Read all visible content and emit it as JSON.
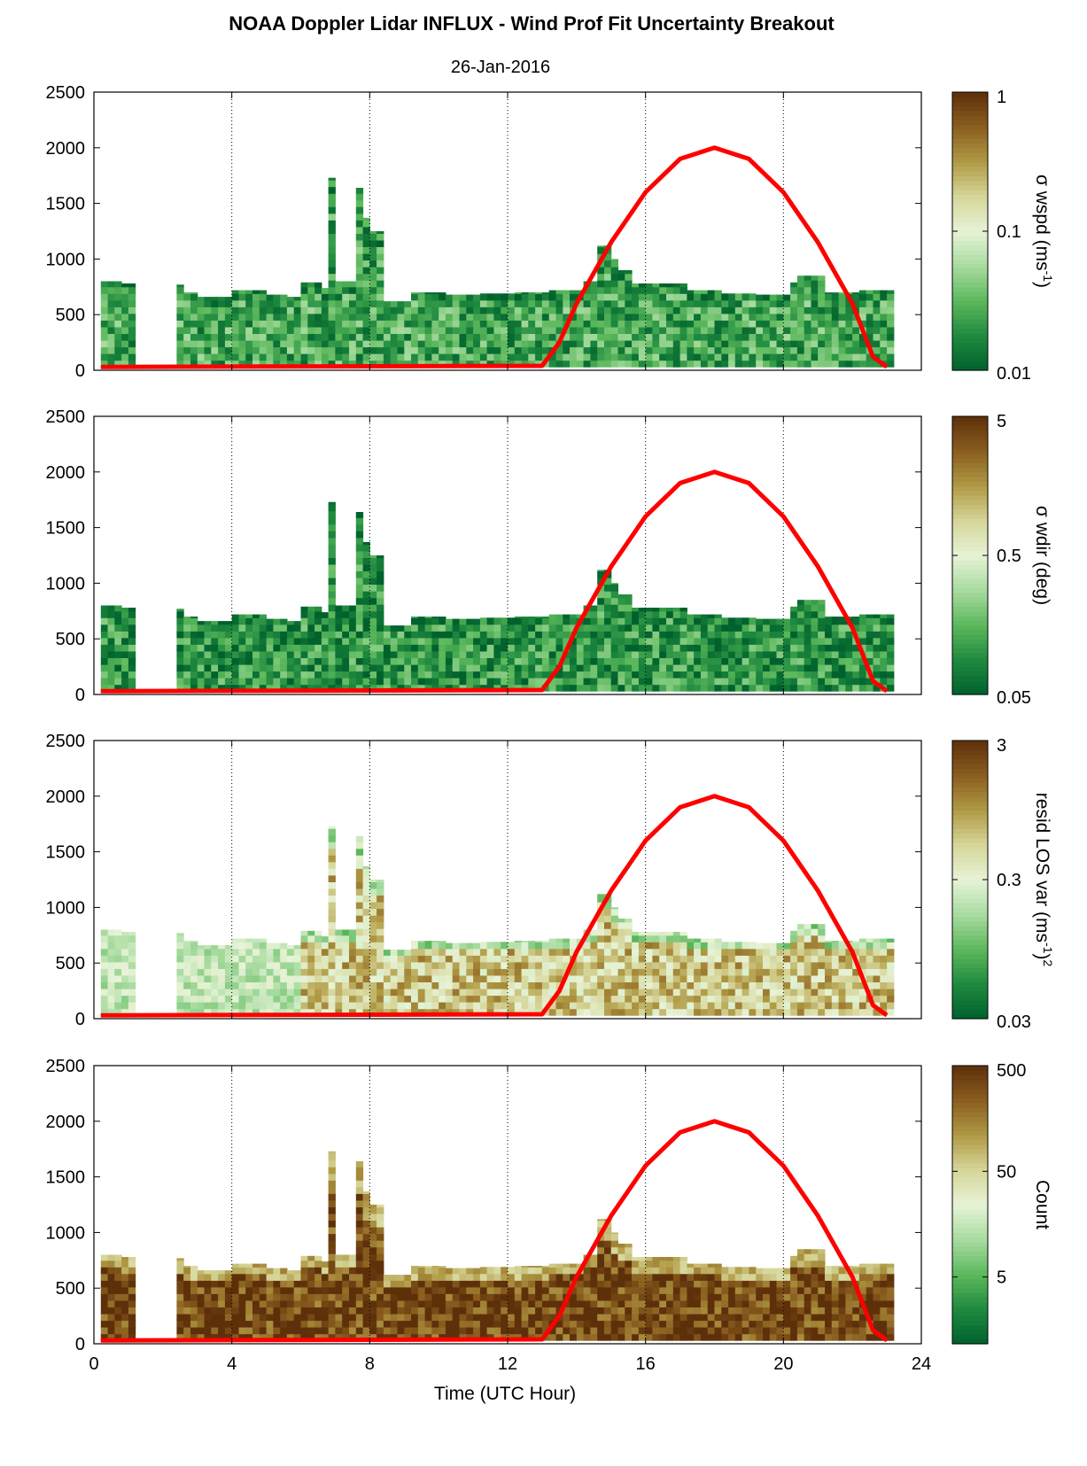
{
  "chart_data": {
    "type": "heatmap",
    "title": "NOAA Doppler Lidar INFLUX - Wind Prof Fit Uncertainty Breakout",
    "subtitle": "26-Jan-2016",
    "xlabel": "Time (UTC Hour)",
    "xlim": [
      0,
      24
    ],
    "x_ticks": [
      "0",
      "4",
      "8",
      "12",
      "16",
      "20",
      "24"
    ],
    "x_tick_values": [
      0,
      4,
      8,
      12,
      16,
      20,
      24
    ],
    "ylim": [
      0,
      2500
    ],
    "y_tick_values": [
      0,
      500,
      1000,
      1500,
      2000,
      2500
    ],
    "y_ticks": [
      "0",
      "500",
      "1000",
      "1500",
      "2000",
      "2500"
    ],
    "grid": "vertical dotted lines at x ticks",
    "colormap_colors": [
      "#00612d",
      "#1f8a3f",
      "#5cb85c",
      "#a8dba0",
      "#e6f3d6",
      "#d6d69a",
      "#b09a45",
      "#8a5e1f",
      "#5e300a"
    ],
    "overlay_color": "#ff0000",
    "data_envelope": {
      "time": [
        0.2,
        0.7,
        1.0,
        2.4,
        3.0,
        4.0,
        5.0,
        5.6,
        6.0,
        6.5,
        6.8,
        7.0,
        7.5,
        7.8,
        8.0,
        8.3,
        9.0,
        10.0,
        11.0,
        12.0,
        13.0,
        14.0,
        14.5,
        14.8,
        15.0,
        15.5,
        16.0,
        17.0,
        18.0,
        19.0,
        20.0,
        20.3,
        21.0,
        22.0,
        23.0
      ],
      "top_height": [
        800,
        780,
        770,
        700,
        660,
        720,
        680,
        660,
        790,
        740,
        1730,
        800,
        1640,
        1370,
        1250,
        620,
        700,
        680,
        690,
        700,
        720,
        800,
        1120,
        1000,
        900,
        780,
        780,
        720,
        690,
        680,
        790,
        850,
        700,
        720,
        690
      ]
    },
    "overlay_curve": {
      "name": "",
      "x": [
        0.2,
        0.5,
        13.0,
        13.5,
        14,
        15,
        16,
        17,
        18,
        19,
        20,
        21,
        22,
        22.6,
        23.0
      ],
      "y": [
        30,
        30,
        40,
        250,
        600,
        1150,
        1600,
        1900,
        2000,
        1900,
        1600,
        1150,
        600,
        120,
        30
      ]
    },
    "panels": [
      {
        "colorbar_label_main": "σ wspd (ms",
        "colorbar_label_sup": "-1",
        "colorbar_label_end": ")",
        "colorbar_label_sup2": "",
        "colorbar_ticks": [
          "1",
          "0.1",
          "0.01"
        ],
        "colorbar_tick_fraction": [
          1.0,
          0.5,
          0.0
        ],
        "typical_level": 0.2
      },
      {
        "colorbar_label_main": "σ wdir (deg)",
        "colorbar_label_sup": "",
        "colorbar_label_end": "",
        "colorbar_label_sup2": "",
        "colorbar_ticks": [
          "5",
          "0.5",
          "0.05"
        ],
        "colorbar_tick_fraction": [
          1.0,
          0.5,
          0.0
        ],
        "typical_level": 0.15
      },
      {
        "colorbar_label_main": "resid LOS var (ms",
        "colorbar_label_sup": "-1",
        "colorbar_label_end": ")",
        "colorbar_label_sup2": "2",
        "colorbar_ticks": [
          "3",
          "0.3",
          "0.03"
        ],
        "colorbar_tick_fraction": [
          1.0,
          0.5,
          0.0
        ],
        "typical_level": 0.65
      },
      {
        "colorbar_label_main": "Count",
        "colorbar_label_sup": "",
        "colorbar_label_end": "",
        "colorbar_label_sup2": "",
        "colorbar_ticks": [
          "500",
          "50",
          "5"
        ],
        "colorbar_tick_fraction": [
          1.0,
          0.62,
          0.24
        ],
        "typical_level": 0.95
      }
    ]
  }
}
